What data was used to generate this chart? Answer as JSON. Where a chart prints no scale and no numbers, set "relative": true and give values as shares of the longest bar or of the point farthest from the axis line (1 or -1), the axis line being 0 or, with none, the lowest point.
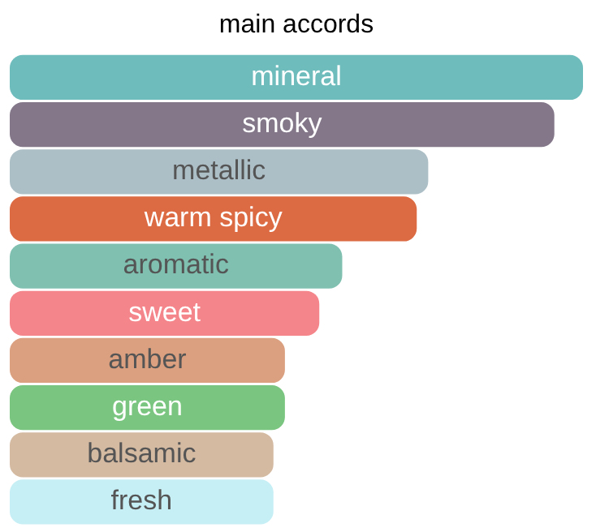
{
  "chart_data": {
    "type": "bar",
    "title": "main accords",
    "orientation": "horizontal",
    "relative": true,
    "categories": [
      "mineral",
      "smoky",
      "metallic",
      "warm spicy",
      "aromatic",
      "sweet",
      "amber",
      "green",
      "balsamic",
      "fresh"
    ],
    "values": [
      1,
      0.95,
      0.73,
      0.71,
      0.58,
      0.54,
      0.48,
      0.48,
      0.46,
      0.46
    ],
    "colors": [
      "#6fbcbd",
      "#837789",
      "#adbfc6",
      "#dc6a42",
      "#7fc0b0",
      "#f4858a",
      "#dba07f",
      "#7ac57f",
      "#d5baa2",
      "#c6eef5"
    ]
  }
}
